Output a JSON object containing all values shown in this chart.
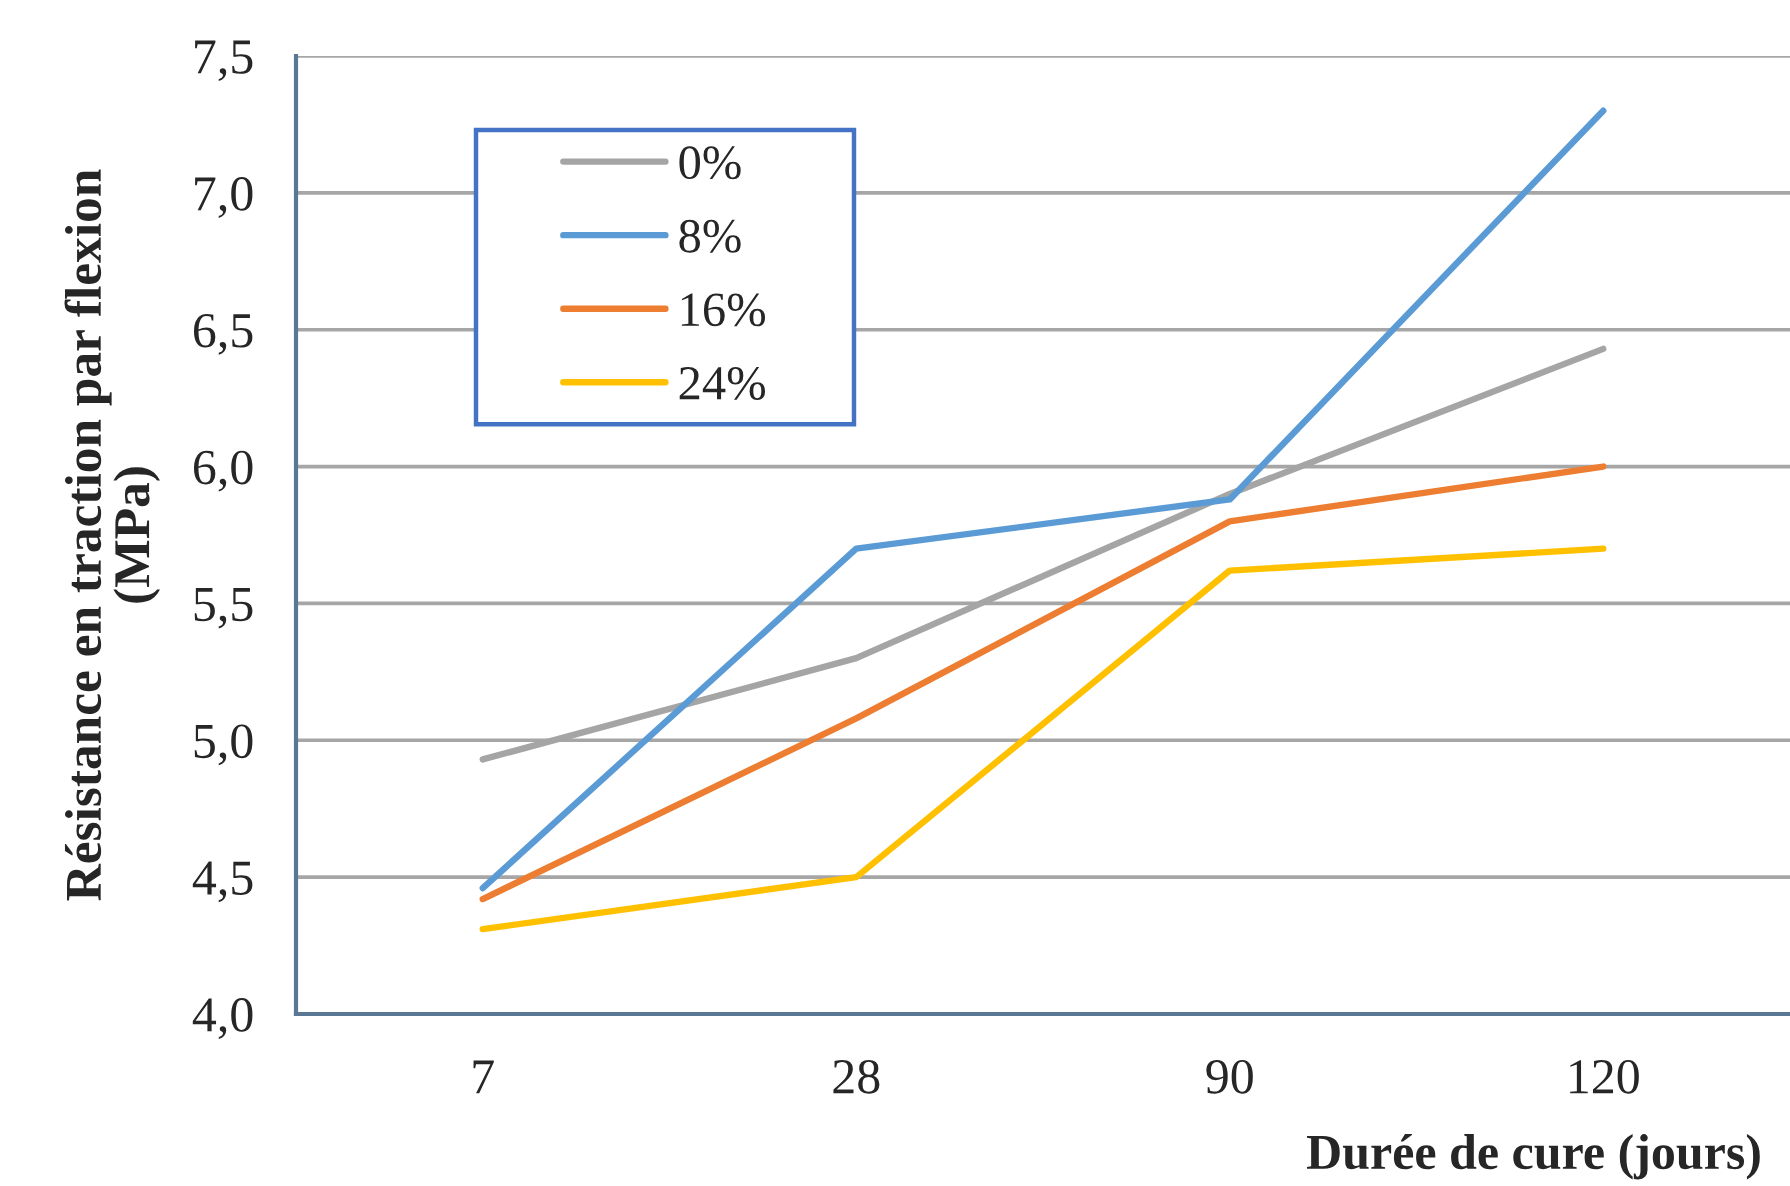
{
  "chart_data": {
    "type": "line",
    "xlabel": "Durée de cure (jours)",
    "ylabel": "Résistance en traction par flexion\n(MPa)",
    "categories": [
      "7",
      "28",
      "90",
      "120"
    ],
    "series": [
      {
        "name": "0%",
        "color": "#a5a5a5",
        "values": [
          4.93,
          5.3,
          5.9,
          6.43
        ]
      },
      {
        "name": "8%",
        "color": "#5b9bd5",
        "values": [
          4.46,
          5.7,
          5.88,
          7.3
        ]
      },
      {
        "name": "16%",
        "color": "#ed7d31",
        "values": [
          4.42,
          5.08,
          5.8,
          6.0
        ]
      },
      {
        "name": "24%",
        "color": "#ffc000",
        "values": [
          4.31,
          4.5,
          5.62,
          5.7
        ]
      }
    ],
    "ylim": [
      4.0,
      7.5
    ],
    "yticks": [
      {
        "value": 4.0,
        "label": "4,0"
      },
      {
        "value": 4.5,
        "label": "4,5"
      },
      {
        "value": 5.0,
        "label": "5,0"
      },
      {
        "value": 5.5,
        "label": "5,5"
      },
      {
        "value": 6.0,
        "label": "6,0"
      },
      {
        "value": 6.5,
        "label": "6,5"
      },
      {
        "value": 7.0,
        "label": "7,0"
      },
      {
        "value": 7.5,
        "label": "7,5"
      }
    ],
    "grid": "y",
    "legend": "top left",
    "line_style": "solid"
  }
}
